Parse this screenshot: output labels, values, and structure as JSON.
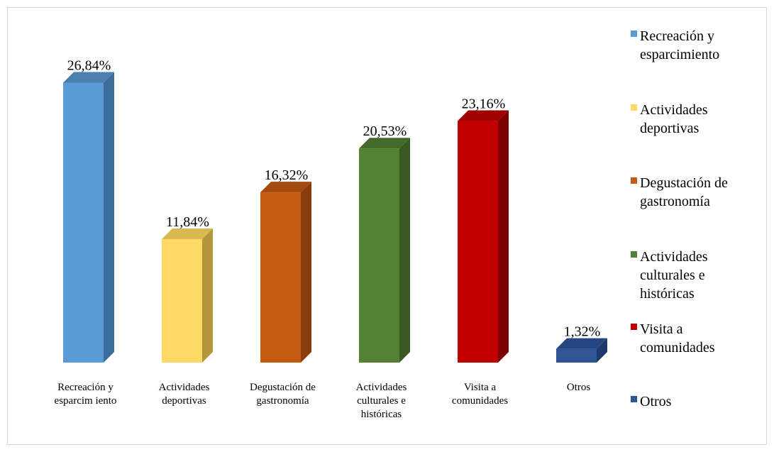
{
  "chart_data": {
    "type": "bar",
    "style": "3d-column",
    "categories": [
      "Recreación y esparcimiento",
      "Actividades deportivas",
      "Degustación de gastronomía",
      "Actividades culturales e históricas",
      "Visita a comunidades",
      "Otros"
    ],
    "category_label_lines": [
      [
        "Recreación y",
        "esparcim iento"
      ],
      [
        "Actividades",
        "deportivas"
      ],
      [
        "Degustación de",
        "gastronomía"
      ],
      [
        "Actividades",
        "culturales e",
        "históricas"
      ],
      [
        "Visita a",
        "comunidades"
      ],
      [
        "Otros"
      ]
    ],
    "values": [
      26.84,
      11.84,
      16.32,
      20.53,
      23.16,
      1.32
    ],
    "data_labels": [
      "26,84%",
      "11,84%",
      "16,32%",
      "20,53%",
      "23,16%",
      "1,32%"
    ],
    "colors": [
      "#5b9bd5",
      "#ffd966",
      "#c55a11",
      "#548235",
      "#c00000",
      "#2f5597"
    ],
    "side_colors": [
      "#3a6d99",
      "#b5963f",
      "#8a3c0a",
      "#3a5a24",
      "#7e0000",
      "#1f3a6a"
    ],
    "top_colors": [
      "#4a7fb0",
      "#d9b84e",
      "#a34a0e",
      "#44692b",
      "#a00000",
      "#254680"
    ],
    "ylim": [
      0,
      30
    ],
    "grid": false,
    "legend_placement": "right",
    "legend": [
      {
        "lines": [
          "Recreación y",
          "esparcimiento"
        ],
        "color": "#5b9bd5"
      },
      {
        "lines": [
          "Actividades",
          "deportivas"
        ],
        "color": "#ffd966"
      },
      {
        "lines": [
          "Degustación de",
          "gastronomía"
        ],
        "color": "#c55a11"
      },
      {
        "lines": [
          "Actividades",
          "culturales e",
          "históricas"
        ],
        "color": "#548235"
      },
      {
        "lines": [
          "Visita a",
          "comunidades"
        ],
        "color": "#c00000"
      },
      {
        "lines": [
          "Otros"
        ],
        "color": "#2f5597"
      }
    ]
  }
}
